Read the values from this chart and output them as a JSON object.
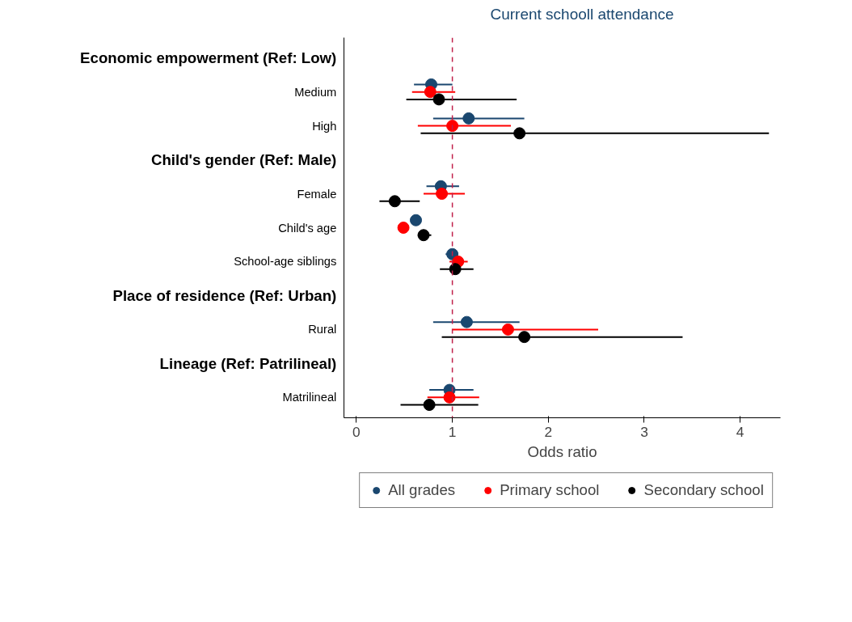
{
  "chart_data": {
    "type": "scatter",
    "orientation": "horizontal",
    "title": "Current schooll attendance",
    "xlabel": "Odds ratio",
    "categories": [
      "Economic empowerment (Ref: Low)",
      "Medium",
      "High",
      "Child's gender (Ref: Male)",
      "Female",
      "Child's age",
      "School-age siblings",
      "Place of residence (Ref: Urban)",
      "Rural",
      "Lineage (Ref: Patrilineal)",
      "Matrilineal"
    ],
    "series": [
      {
        "name": "All grades",
        "color": "#1a476f",
        "values": [
          null,
          0.78,
          1.17,
          null,
          0.88,
          0.62,
          1.0,
          null,
          1.15,
          null,
          0.97
        ],
        "errors": [
          null,
          [
            0.6,
            1.0
          ],
          [
            0.8,
            1.75
          ],
          null,
          [
            0.73,
            1.07
          ],
          null,
          [
            0.93,
            1.06
          ],
          null,
          [
            0.8,
            1.7
          ],
          null,
          [
            0.76,
            1.22
          ]
        ]
      },
      {
        "name": "Primary school",
        "color": "#ff0000",
        "values": [
          null,
          0.77,
          1.0,
          null,
          0.89,
          0.49,
          1.06,
          null,
          1.58,
          null,
          0.97
        ],
        "errors": [
          null,
          [
            0.58,
            1.03
          ],
          [
            0.64,
            1.61
          ],
          null,
          [
            0.7,
            1.13
          ],
          null,
          [
            0.97,
            1.16
          ],
          null,
          [
            1.0,
            2.52
          ],
          null,
          [
            0.74,
            1.28
          ]
        ]
      },
      {
        "name": "Secondary school",
        "color": "#000000",
        "values": [
          null,
          0.86,
          1.7,
          null,
          0.4,
          0.7,
          1.03,
          null,
          1.75,
          null,
          0.76
        ],
        "errors": [
          null,
          [
            0.52,
            1.67
          ],
          [
            0.67,
            4.3
          ],
          null,
          [
            0.24,
            0.66
          ],
          [
            0.64,
            0.78
          ],
          [
            0.87,
            1.22
          ],
          null,
          [
            0.89,
            3.4
          ],
          null,
          [
            0.46,
            1.27
          ]
        ]
      }
    ],
    "xlim": [
      -0.13,
      4.42
    ],
    "xticks": [
      0,
      1,
      2,
      3,
      4
    ],
    "ref_lines": [
      {
        "axis": "x",
        "value": 1,
        "color": "#c0204a",
        "line_style": "dashed"
      }
    ],
    "marker": "circle",
    "grid": false,
    "legend": "bottom"
  }
}
